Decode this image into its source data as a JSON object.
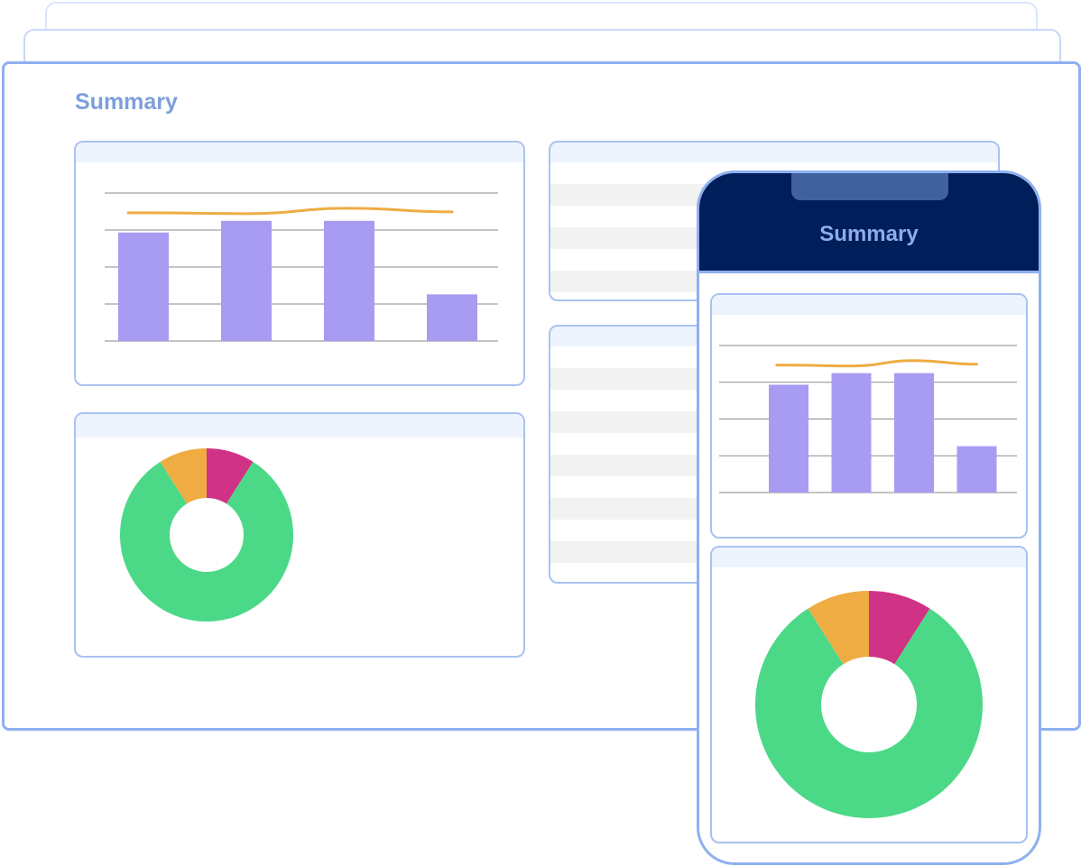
{
  "desktop": {
    "title": "Summary"
  },
  "phone": {
    "title": "Summary"
  },
  "colors": {
    "bar": "#a89bf2",
    "trend": "#eeac43",
    "donut": [
      "#d03285",
      "#4cd987",
      "#eeac43"
    ],
    "frame": "#8eb0f0"
  },
  "icons": [
    "phone-notch"
  ],
  "chart_data": [
    {
      "type": "bar",
      "title": "",
      "categories": [
        "",
        "",
        "",
        ""
      ],
      "values": [
        121,
        134,
        134,
        52
      ],
      "trend": [
        143,
        142,
        148,
        144
      ],
      "ylim": [
        0,
        165
      ],
      "grid": true
    },
    {
      "type": "pie",
      "title": "",
      "slices": [
        {
          "label": "",
          "value": 9,
          "color": "#d03285"
        },
        {
          "label": "",
          "value": 82,
          "color": "#4cd987"
        },
        {
          "label": "",
          "value": 9,
          "color": "#eeac43"
        }
      ],
      "donut": true
    }
  ]
}
